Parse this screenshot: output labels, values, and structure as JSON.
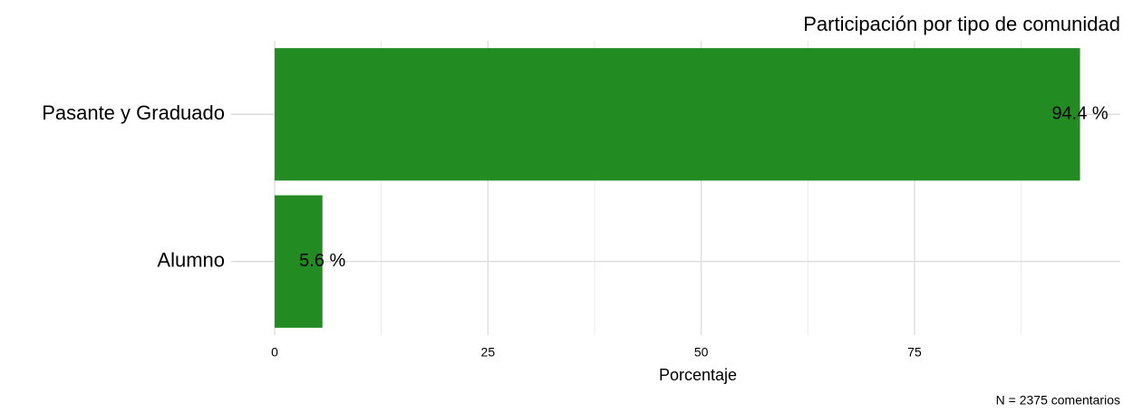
{
  "chart_data": {
    "type": "bar",
    "orientation": "horizontal",
    "title": "Participación por tipo de comunidad",
    "caption": "N = 2375 comentarios",
    "x_label": "Porcentaje",
    "categories": [
      "Pasante y Graduado",
      "Alumno"
    ],
    "values": [
      94.4,
      5.6
    ],
    "value_labels": [
      "94.4 %",
      "5.6 %"
    ],
    "color": "#228b22",
    "xlim": [
      -4.72,
      99.12
    ],
    "xticks": [
      0,
      25,
      50,
      75
    ],
    "xminor_ticks": [
      12.5,
      37.5,
      62.5,
      87.5
    ],
    "grid": true
  }
}
